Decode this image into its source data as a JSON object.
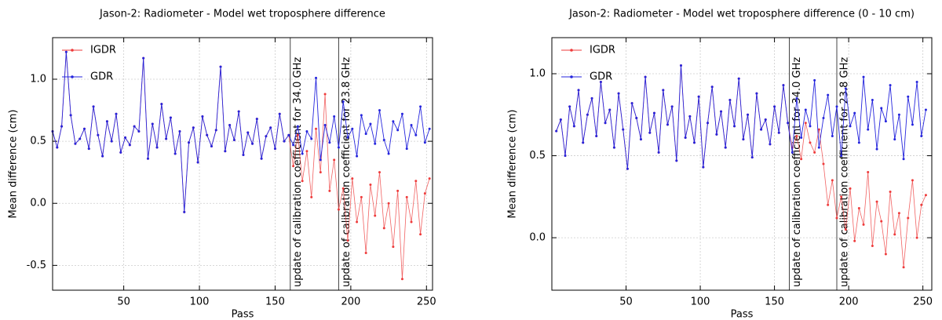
{
  "chart_data": [
    {
      "type": "line",
      "title": "Jason-2: Radiometer - Model wet troposphere difference",
      "x_label": "Pass",
      "y_label": "Mean difference (cm)",
      "xlim": [
        3,
        254
      ],
      "ylim": [
        -0.7,
        1.335
      ],
      "xticks": [
        50,
        100,
        150,
        200,
        250
      ],
      "yticks": [
        -0.5,
        {
          "value": 0,
          "label": "0.0"
        },
        0.5,
        {
          "value": 1,
          "label": "1.0"
        }
      ],
      "grid": true,
      "legend": "upper left",
      "vlines": [
        {
          "x": 160,
          "label": "update of calibration coefficient for 34.0 GHz"
        },
        {
          "x": 192,
          "label": "update of calibration coefficient for 23.8 GHz"
        }
      ],
      "x": [
        3,
        6,
        9,
        12,
        15,
        18,
        21,
        24,
        27,
        30,
        33,
        36,
        39,
        42,
        45,
        48,
        51,
        54,
        57,
        60,
        63,
        66,
        69,
        72,
        75,
        78,
        81,
        84,
        87,
        90,
        93,
        96,
        99,
        102,
        105,
        108,
        111,
        114,
        117,
        120,
        123,
        126,
        129,
        132,
        135,
        138,
        141,
        144,
        147,
        150,
        153,
        156,
        159,
        162,
        165,
        168,
        171,
        174,
        177,
        180,
        183,
        186,
        189,
        192,
        195,
        198,
        201,
        204,
        207,
        210,
        213,
        216,
        219,
        222,
        225,
        228,
        231,
        234,
        237,
        240,
        243,
        246,
        249,
        252
      ],
      "series": [
        {
          "name": "IGDR",
          "color": "#ee3b3b",
          "values": [
            0.58,
            0.45,
            0.62,
            1.22,
            0.71,
            0.48,
            0.52,
            0.6,
            0.44,
            0.78,
            0.55,
            0.38,
            0.66,
            0.5,
            0.72,
            0.41,
            0.53,
            0.47,
            0.62,
            0.58,
            1.17,
            0.36,
            0.64,
            0.45,
            0.8,
            0.52,
            0.69,
            0.4,
            0.58,
            -0.07,
            0.49,
            0.61,
            0.33,
            0.7,
            0.55,
            0.46,
            0.59,
            1.1,
            0.42,
            0.63,
            0.51,
            0.74,
            0.39,
            0.57,
            0.48,
            0.68,
            0.36,
            0.54,
            0.61,
            0.44,
            0.72,
            0.5,
            0.55,
            0.3,
            0.55,
            0.18,
            0.42,
            0.05,
            0.6,
            0.25,
            0.88,
            0.1,
            0.35,
            -0.05,
            0.12,
            -0.3,
            0.2,
            -0.15,
            0.05,
            -0.4,
            0.15,
            -0.1,
            0.25,
            -0.2,
            0.0,
            -0.35,
            0.1,
            -0.61,
            0.05,
            -0.15,
            0.18,
            -0.25,
            0.08,
            0.2
          ]
        },
        {
          "name": "GDR",
          "color": "#2525dd",
          "values": [
            0.58,
            0.45,
            0.62,
            1.22,
            0.71,
            0.48,
            0.52,
            0.6,
            0.44,
            0.78,
            0.55,
            0.38,
            0.66,
            0.5,
            0.72,
            0.41,
            0.53,
            0.47,
            0.62,
            0.58,
            1.17,
            0.36,
            0.64,
            0.45,
            0.8,
            0.52,
            0.69,
            0.4,
            0.58,
            -0.07,
            0.49,
            0.61,
            0.33,
            0.7,
            0.55,
            0.46,
            0.59,
            1.1,
            0.42,
            0.63,
            0.51,
            0.74,
            0.39,
            0.57,
            0.48,
            0.68,
            0.36,
            0.54,
            0.61,
            0.44,
            0.72,
            0.5,
            0.55,
            0.47,
            0.62,
            0.4,
            0.58,
            0.52,
            1.01,
            0.35,
            0.63,
            0.49,
            0.7,
            0.45,
            0.82,
            0.53,
            0.6,
            0.38,
            0.71,
            0.56,
            0.64,
            0.48,
            0.75,
            0.51,
            0.4,
            0.66,
            0.59,
            0.72,
            0.44,
            0.63,
            0.55,
            0.78,
            0.49,
            0.6
          ]
        }
      ]
    },
    {
      "type": "line",
      "title": "Jason-2: Radiometer - Model wet troposphere difference (0 - 10 cm)",
      "x_label": "Pass",
      "y_label": "Mean difference (cm)",
      "xlim": [
        0,
        256
      ],
      "ylim": [
        -0.32,
        1.22
      ],
      "xticks": [
        50,
        100,
        150,
        200,
        250
      ],
      "yticks": [
        {
          "value": 0,
          "label": "0.0"
        },
        0.5,
        {
          "value": 1,
          "label": "1.0"
        }
      ],
      "grid": true,
      "legend": "upper left",
      "vlines": [
        {
          "x": 160,
          "label": "update of calibration coefficient for 34.0 GHz"
        },
        {
          "x": 192,
          "label": "update of calibration coefficient for 23.8 GHz"
        }
      ],
      "x": [
        3,
        6,
        9,
        12,
        15,
        18,
        21,
        24,
        27,
        30,
        33,
        36,
        39,
        42,
        45,
        48,
        51,
        54,
        57,
        60,
        63,
        66,
        69,
        72,
        75,
        78,
        81,
        84,
        87,
        90,
        93,
        96,
        99,
        102,
        105,
        108,
        111,
        114,
        117,
        120,
        123,
        126,
        129,
        132,
        135,
        138,
        141,
        144,
        147,
        150,
        153,
        156,
        159,
        162,
        165,
        168,
        171,
        174,
        177,
        180,
        183,
        186,
        189,
        192,
        195,
        198,
        201,
        204,
        207,
        210,
        213,
        216,
        219,
        222,
        225,
        228,
        231,
        234,
        237,
        240,
        243,
        246,
        249,
        252
      ],
      "series": [
        {
          "name": "IGDR",
          "color": "#ee3b3b",
          "values": [
            0.65,
            0.72,
            0.5,
            0.8,
            0.68,
            0.9,
            0.58,
            0.75,
            0.85,
            0.62,
            0.95,
            0.7,
            0.78,
            0.55,
            0.88,
            0.66,
            0.42,
            0.82,
            0.73,
            0.6,
            0.98,
            0.64,
            0.76,
            0.52,
            0.9,
            0.69,
            0.8,
            0.47,
            1.05,
            0.61,
            0.74,
            0.58,
            0.86,
            0.43,
            0.7,
            0.92,
            0.63,
            0.77,
            0.55,
            0.84,
            0.68,
            0.97,
            0.6,
            0.75,
            0.49,
            0.88,
            0.66,
            0.72,
            0.57,
            0.8,
            0.64,
            0.93,
            0.7,
            0.55,
            0.62,
            0.48,
            0.7,
            0.58,
            0.52,
            0.66,
            0.45,
            0.2,
            0.35,
            0.12,
            0.25,
            0.05,
            0.3,
            -0.02,
            0.18,
            0.08,
            0.4,
            -0.05,
            0.22,
            0.1,
            -0.1,
            0.28,
            0.02,
            0.15,
            -0.18,
            0.12,
            0.35,
            0.0,
            0.2,
            0.26
          ]
        },
        {
          "name": "GDR",
          "color": "#2525dd",
          "values": [
            0.65,
            0.72,
            0.5,
            0.8,
            0.68,
            0.9,
            0.58,
            0.75,
            0.85,
            0.62,
            0.95,
            0.7,
            0.78,
            0.55,
            0.88,
            0.66,
            0.42,
            0.82,
            0.73,
            0.6,
            0.98,
            0.64,
            0.76,
            0.52,
            0.9,
            0.69,
            0.8,
            0.47,
            1.05,
            0.61,
            0.74,
            0.58,
            0.86,
            0.43,
            0.7,
            0.92,
            0.63,
            0.77,
            0.55,
            0.84,
            0.68,
            0.97,
            0.6,
            0.75,
            0.49,
            0.88,
            0.66,
            0.72,
            0.57,
            0.8,
            0.64,
            0.93,
            0.7,
            0.52,
            0.85,
            0.61,
            0.78,
            0.68,
            0.96,
            0.55,
            0.73,
            0.87,
            0.62,
            0.8,
            0.5,
            0.91,
            0.68,
            0.76,
            0.58,
            0.98,
            0.66,
            0.84,
            0.54,
            0.79,
            0.71,
            0.93,
            0.6,
            0.75,
            0.48,
            0.86,
            0.69,
            0.95,
            0.62,
            0.78
          ]
        }
      ]
    }
  ]
}
